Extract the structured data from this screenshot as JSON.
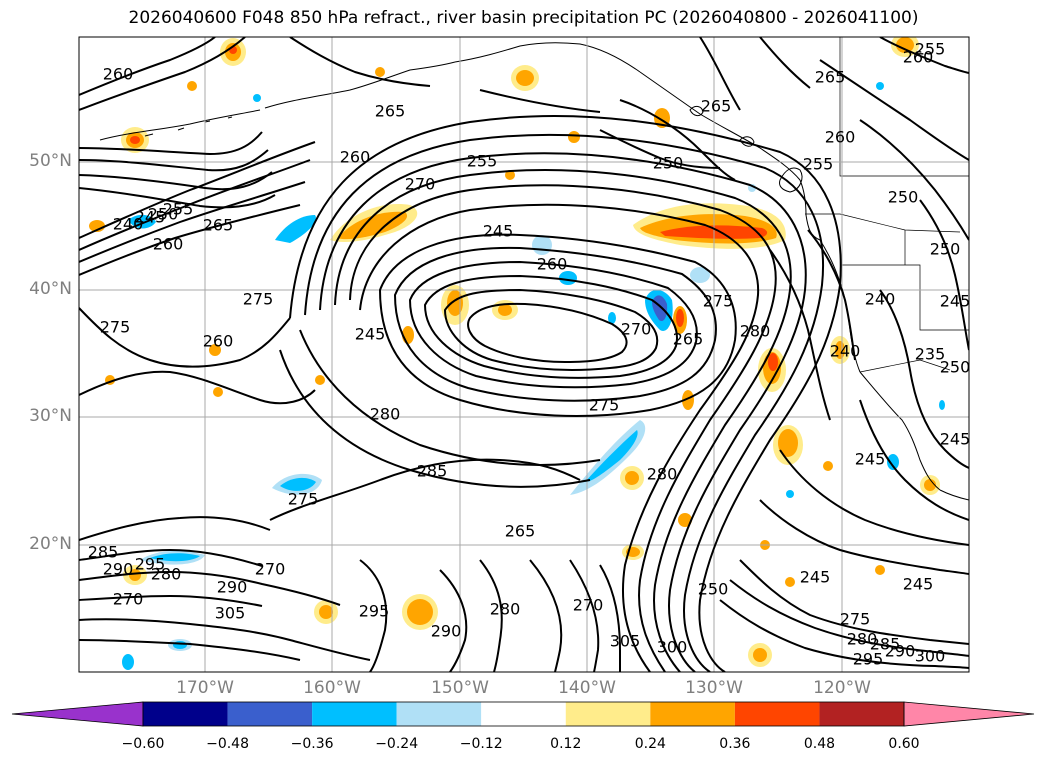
{
  "title": "2026040600 F048 850 hPa refract., river basin precipitation PC (2026040800 - 2026041100)",
  "map": {
    "lat_labels": [
      "50°N",
      "40°N",
      "30°N",
      "20°N"
    ],
    "lon_labels": [
      "170°W",
      "160°W",
      "150°W",
      "140°W",
      "130°W",
      "120°W"
    ],
    "contour_labels": [
      {
        "text": "260",
        "pos": [
          118,
          75
        ]
      },
      {
        "text": "265",
        "pos": [
          390,
          112
        ]
      },
      {
        "text": "260",
        "pos": [
          355,
          158
        ]
      },
      {
        "text": "270",
        "pos": [
          420,
          185
        ]
      },
      {
        "text": "255",
        "pos": [
          482,
          162
        ]
      },
      {
        "text": "265",
        "pos": [
          218,
          226
        ]
      },
      {
        "text": "245",
        "pos": [
          498,
          232
        ]
      },
      {
        "text": "260",
        "pos": [
          552,
          265
        ]
      },
      {
        "text": "275",
        "pos": [
          258,
          300
        ]
      },
      {
        "text": "275",
        "pos": [
          115,
          328
        ]
      },
      {
        "text": "260",
        "pos": [
          218,
          342
        ]
      },
      {
        "text": "245",
        "pos": [
          370,
          335
        ]
      },
      {
        "text": "270",
        "pos": [
          636,
          330
        ]
      },
      {
        "text": "265",
        "pos": [
          688,
          340
        ]
      },
      {
        "text": "275",
        "pos": [
          718,
          302
        ]
      },
      {
        "text": "280",
        "pos": [
          755,
          332
        ]
      },
      {
        "text": "280",
        "pos": [
          385,
          415
        ]
      },
      {
        "text": "275",
        "pos": [
          604,
          406
        ]
      },
      {
        "text": "285",
        "pos": [
          432,
          472
        ]
      },
      {
        "text": "275",
        "pos": [
          303,
          500
        ]
      },
      {
        "text": "280",
        "pos": [
          662,
          475
        ]
      },
      {
        "text": "265",
        "pos": [
          520,
          532
        ]
      },
      {
        "text": "250",
        "pos": [
          668,
          164
        ]
      },
      {
        "text": "265",
        "pos": [
          716,
          107
        ]
      },
      {
        "text": "265",
        "pos": [
          830,
          78
        ]
      },
      {
        "text": "260",
        "pos": [
          840,
          138
        ]
      },
      {
        "text": "255",
        "pos": [
          818,
          165
        ]
      },
      {
        "text": "255",
        "pos": [
          930,
          50
        ]
      },
      {
        "text": "260",
        "pos": [
          918,
          58
        ]
      },
      {
        "text": "250",
        "pos": [
          903,
          198
        ]
      },
      {
        "text": "240",
        "pos": [
          880,
          300
        ]
      },
      {
        "text": "250",
        "pos": [
          945,
          250
        ]
      },
      {
        "text": "245",
        "pos": [
          955,
          302
        ]
      },
      {
        "text": "240",
        "pos": [
          845,
          352
        ]
      },
      {
        "text": "235",
        "pos": [
          930,
          355
        ]
      },
      {
        "text": "250",
        "pos": [
          955,
          368
        ]
      },
      {
        "text": "245",
        "pos": [
          870,
          460
        ]
      },
      {
        "text": "245",
        "pos": [
          955,
          440
        ]
      },
      {
        "text": "245",
        "pos": [
          815,
          578
        ]
      },
      {
        "text": "245",
        "pos": [
          918,
          585
        ]
      },
      {
        "text": "240",
        "pos": [
          128,
          225
        ]
      },
      {
        "text": "245",
        "pos": [
          150,
          218
        ]
      },
      {
        "text": "250",
        "pos": [
          163,
          215
        ]
      },
      {
        "text": "255",
        "pos": [
          178,
          210
        ]
      },
      {
        "text": "260",
        "pos": [
          168,
          245
        ]
      },
      {
        "text": "285",
        "pos": [
          103,
          553
        ]
      },
      {
        "text": "290",
        "pos": [
          118,
          570
        ]
      },
      {
        "text": "295",
        "pos": [
          150,
          565
        ]
      },
      {
        "text": "280",
        "pos": [
          166,
          575
        ]
      },
      {
        "text": "270",
        "pos": [
          128,
          600
        ]
      },
      {
        "text": "270",
        "pos": [
          270,
          570
        ]
      },
      {
        "text": "290",
        "pos": [
          232,
          588
        ]
      },
      {
        "text": "305",
        "pos": [
          230,
          614
        ]
      },
      {
        "text": "295",
        "pos": [
          374,
          612
        ]
      },
      {
        "text": "290",
        "pos": [
          446,
          632
        ]
      },
      {
        "text": "280",
        "pos": [
          505,
          610
        ]
      },
      {
        "text": "270",
        "pos": [
          588,
          606
        ]
      },
      {
        "text": "305",
        "pos": [
          625,
          642
        ]
      },
      {
        "text": "300",
        "pos": [
          672,
          648
        ]
      },
      {
        "text": "250",
        "pos": [
          713,
          590
        ]
      },
      {
        "text": "275",
        "pos": [
          855,
          620
        ]
      },
      {
        "text": "280",
        "pos": [
          862,
          640
        ]
      },
      {
        "text": "285",
        "pos": [
          885,
          645
        ]
      },
      {
        "text": "290",
        "pos": [
          900,
          652
        ]
      },
      {
        "text": "295",
        "pos": [
          868,
          660
        ]
      },
      {
        "text": "300",
        "pos": [
          930,
          657
        ]
      }
    ]
  },
  "colorbar": {
    "levels": [
      "−0.60",
      "−0.48",
      "−0.36",
      "−0.24",
      "−0.12",
      "0.12",
      "0.24",
      "0.36",
      "0.48",
      "0.60"
    ],
    "colors": [
      "#9932cc",
      "#00008b",
      "#3a5fcd",
      "#00bfff",
      "#b0e0f6",
      "#ffffff",
      "#ffec8b",
      "#ffa500",
      "#ff4500",
      "#b22222",
      "#ff86a8"
    ]
  }
}
